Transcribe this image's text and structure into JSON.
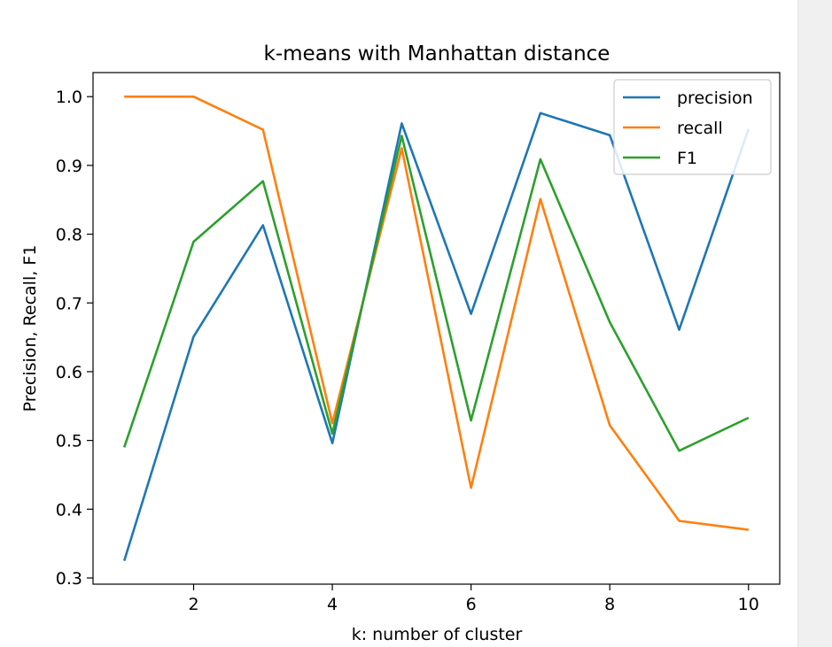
{
  "chart_data": {
    "type": "line",
    "title": "k-means with Manhattan distance",
    "xlabel": "k: number of cluster",
    "ylabel": "Precision, Recall, F1",
    "x": [
      1,
      2,
      3,
      4,
      5,
      6,
      7,
      8,
      9,
      10
    ],
    "xlim": [
      0.55,
      10.45
    ],
    "ylim": [
      0.291,
      1.035
    ],
    "xticks": [
      2,
      4,
      6,
      8,
      10
    ],
    "yticks": [
      0.3,
      0.4,
      0.5,
      0.6,
      0.7,
      0.8,
      0.9,
      1.0
    ],
    "ytick_labels": [
      "0.3",
      "0.4",
      "0.5",
      "0.6",
      "0.7",
      "0.8",
      "0.9",
      "1.0"
    ],
    "grid": false,
    "legend": "top-right",
    "series": [
      {
        "name": "precision",
        "color": "#1f77b4",
        "values": [
          0.325,
          0.651,
          0.813,
          0.496,
          0.961,
          0.684,
          0.976,
          0.944,
          0.661,
          0.953
        ]
      },
      {
        "name": "recall",
        "color": "#ff7f0e",
        "values": [
          1.0,
          1.0,
          0.952,
          0.525,
          0.925,
          0.431,
          0.851,
          0.522,
          0.383,
          0.37
        ]
      },
      {
        "name": "F1",
        "color": "#2ca02c",
        "values": [
          0.49,
          0.789,
          0.877,
          0.51,
          0.943,
          0.529,
          0.909,
          0.672,
          0.485,
          0.533
        ]
      }
    ]
  }
}
